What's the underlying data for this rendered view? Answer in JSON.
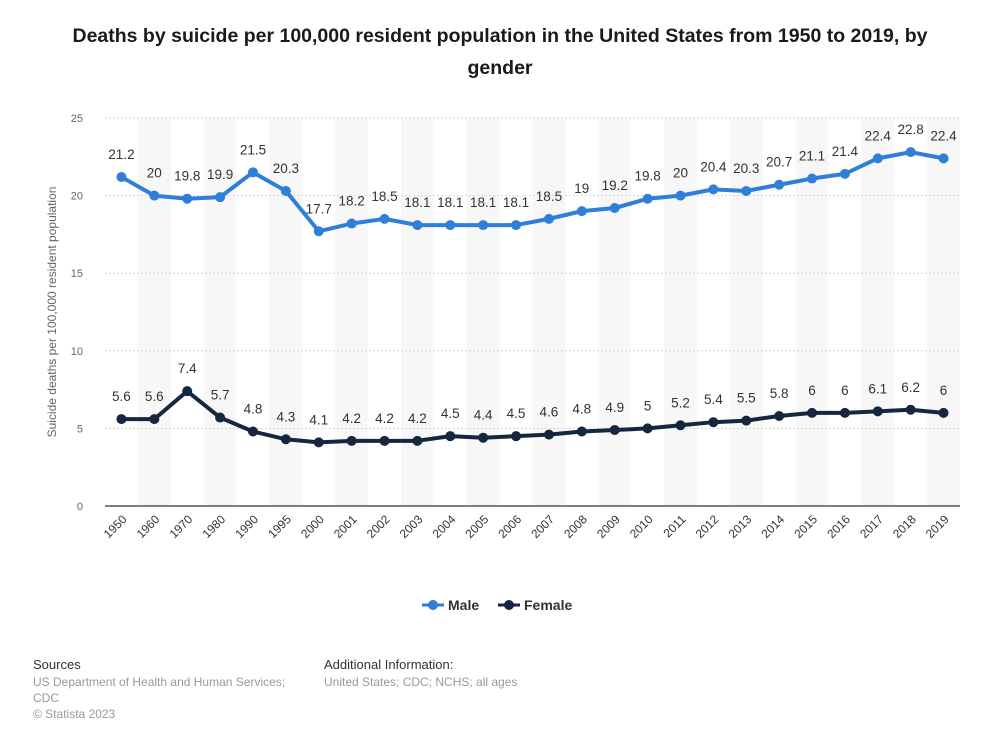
{
  "chart_data": {
    "type": "line",
    "title": "Deaths by suicide per 100,000 resident population in the United States from 1950 to 2019, by gender",
    "ylabel": "Suicide deaths per 100,000 resident population",
    "xlabel": "",
    "ylim": [
      0,
      25
    ],
    "yticks": [
      "0",
      "5",
      "10",
      "15",
      "20",
      "25"
    ],
    "grid": true,
    "legend_position": "bottom-center",
    "categories": [
      "1950",
      "1960",
      "1970",
      "1980",
      "1990",
      "1995",
      "2000",
      "2001",
      "2002",
      "2003",
      "2004",
      "2005",
      "2006",
      "2007",
      "2008",
      "2009",
      "2010",
      "2011",
      "2012",
      "2013",
      "2014",
      "2015",
      "2016",
      "2017",
      "2018",
      "2019"
    ],
    "series": [
      {
        "name": "Male",
        "color": "#2f7ed8",
        "values": [
          21.2,
          20,
          19.8,
          19.9,
          21.5,
          20.3,
          17.7,
          18.2,
          18.5,
          18.1,
          18.1,
          18.1,
          18.1,
          18.5,
          19,
          19.2,
          19.8,
          20,
          20.4,
          20.3,
          20.7,
          21.1,
          21.4,
          22.4,
          22.8,
          22.4
        ],
        "labels": [
          "21.2",
          "20",
          "19.8",
          "19.9",
          "21.5",
          "20.3",
          "17.7",
          "18.2",
          "18.5",
          "18.1",
          "18.1",
          "18.1",
          "18.1",
          "18.5",
          "19",
          "19.2",
          "19.8",
          "20",
          "20.4",
          "20.3",
          "20.7",
          "21.1",
          "21.4",
          "22.4",
          "22.8",
          "22.4"
        ]
      },
      {
        "name": "Female",
        "color": "#15263f",
        "values": [
          5.6,
          5.6,
          7.4,
          5.7,
          4.8,
          4.3,
          4.1,
          4.2,
          4.2,
          4.2,
          4.5,
          4.4,
          4.5,
          4.6,
          4.8,
          4.9,
          5,
          5.2,
          5.4,
          5.5,
          5.8,
          6,
          6,
          6.1,
          6.2,
          6
        ],
        "labels": [
          "5.6",
          "5.6",
          "7.4",
          "5.7",
          "4.8",
          "4.3",
          "4.1",
          "4.2",
          "4.2",
          "4.2",
          "4.5",
          "4.4",
          "4.5",
          "4.6",
          "4.8",
          "4.9",
          "5",
          "5.2",
          "5.4",
          "5.5",
          "5.8",
          "6",
          "6",
          "6.1",
          "6.2",
          "6"
        ]
      }
    ]
  },
  "footer": {
    "sources_heading": "Sources",
    "sources_line1": "US Department of Health and Human Services;",
    "sources_line2": "CDC",
    "copyright": "© Statista 2023",
    "info_heading": "Additional Information:",
    "info_text": "United States; CDC; NCHS; all ages"
  }
}
